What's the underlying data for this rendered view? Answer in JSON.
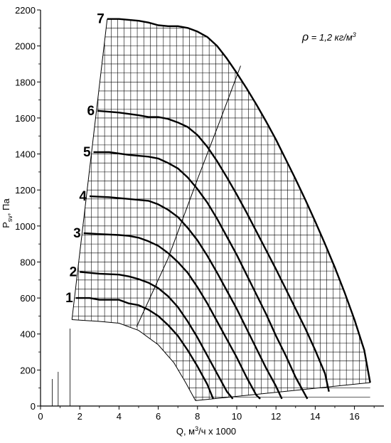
{
  "chart_data": {
    "type": "line",
    "xlabel_prefix": "Q, м",
    "xlabel_sup": "3",
    "xlabel_suffix": "/ч x 1000",
    "ylabel_main": "P",
    "ylabel_sub": "sv",
    "ylabel_suffix": ", Па",
    "density_symbol": "ρ",
    "density_text": " = 1,2 кг/м",
    "density_sup": "3",
    "xlim": [
      0,
      17.5
    ],
    "ylim": [
      0,
      2200
    ],
    "x_ticks": [
      0,
      2,
      4,
      6,
      8,
      10,
      12,
      14,
      16
    ],
    "y_ticks": [
      0,
      200,
      400,
      600,
      800,
      1000,
      1200,
      1400,
      1600,
      1800,
      2000,
      2200
    ],
    "series": [
      {
        "label": "1",
        "points": [
          [
            1.8,
            600
          ],
          [
            2.5,
            600
          ],
          [
            3.0,
            590
          ],
          [
            4.0,
            590
          ],
          [
            4.5,
            570
          ],
          [
            5.0,
            560
          ],
          [
            5.5,
            535
          ],
          [
            6.0,
            500
          ],
          [
            6.5,
            450
          ],
          [
            7.0,
            390
          ],
          [
            7.5,
            310
          ],
          [
            8.0,
            220
          ],
          [
            8.5,
            120
          ],
          [
            8.8,
            40
          ]
        ]
      },
      {
        "label": "2",
        "points": [
          [
            2.0,
            745
          ],
          [
            3.0,
            735
          ],
          [
            4.0,
            730
          ],
          [
            4.5,
            720
          ],
          [
            5.0,
            705
          ],
          [
            5.5,
            685
          ],
          [
            6.0,
            655
          ],
          [
            6.5,
            610
          ],
          [
            7.0,
            550
          ],
          [
            7.5,
            470
          ],
          [
            8.0,
            380
          ],
          [
            8.5,
            280
          ],
          [
            9.0,
            180
          ],
          [
            9.5,
            80
          ],
          [
            9.8,
            40
          ]
        ]
      },
      {
        "label": "3",
        "points": [
          [
            2.2,
            960
          ],
          [
            3.0,
            955
          ],
          [
            4.0,
            950
          ],
          [
            4.5,
            945
          ],
          [
            5.0,
            935
          ],
          [
            5.5,
            915
          ],
          [
            6.0,
            890
          ],
          [
            6.5,
            850
          ],
          [
            7.0,
            800
          ],
          [
            7.5,
            740
          ],
          [
            8.0,
            660
          ],
          [
            8.5,
            570
          ],
          [
            9.0,
            470
          ],
          [
            9.5,
            370
          ],
          [
            10.0,
            270
          ],
          [
            10.5,
            160
          ],
          [
            11.0,
            60
          ],
          [
            11.2,
            40
          ]
        ]
      },
      {
        "label": "4",
        "points": [
          [
            2.5,
            1165
          ],
          [
            3.5,
            1160
          ],
          [
            4.5,
            1150
          ],
          [
            5.5,
            1140
          ],
          [
            6.0,
            1120
          ],
          [
            6.5,
            1090
          ],
          [
            7.0,
            1050
          ],
          [
            7.5,
            990
          ],
          [
            8.0,
            920
          ],
          [
            8.5,
            835
          ],
          [
            9.0,
            740
          ],
          [
            9.5,
            640
          ],
          [
            10.0,
            540
          ],
          [
            10.5,
            430
          ],
          [
            11.0,
            320
          ],
          [
            11.5,
            210
          ],
          [
            12.0,
            110
          ],
          [
            12.3,
            40
          ]
        ]
      },
      {
        "label": "5",
        "points": [
          [
            2.7,
            1410
          ],
          [
            3.5,
            1410
          ],
          [
            4.5,
            1395
          ],
          [
            5.5,
            1385
          ],
          [
            6.0,
            1375
          ],
          [
            6.5,
            1350
          ],
          [
            7.0,
            1320
          ],
          [
            7.5,
            1270
          ],
          [
            8.0,
            1205
          ],
          [
            8.5,
            1130
          ],
          [
            9.0,
            1040
          ],
          [
            9.5,
            940
          ],
          [
            10.0,
            840
          ],
          [
            10.5,
            730
          ],
          [
            11.0,
            620
          ],
          [
            11.5,
            510
          ],
          [
            12.0,
            390
          ],
          [
            12.5,
            280
          ],
          [
            13.0,
            160
          ],
          [
            13.5,
            60
          ],
          [
            13.6,
            40
          ]
        ]
      },
      {
        "label": "6",
        "points": [
          [
            2.9,
            1640
          ],
          [
            4.0,
            1630
          ],
          [
            5.0,
            1615
          ],
          [
            5.5,
            1605
          ],
          [
            6.0,
            1605
          ],
          [
            6.5,
            1595
          ],
          [
            7.0,
            1575
          ],
          [
            7.5,
            1550
          ],
          [
            8.0,
            1505
          ],
          [
            8.5,
            1440
          ],
          [
            9.0,
            1360
          ],
          [
            9.5,
            1270
          ],
          [
            10.0,
            1175
          ],
          [
            10.5,
            1075
          ],
          [
            11.0,
            970
          ],
          [
            11.5,
            865
          ],
          [
            12.0,
            760
          ],
          [
            12.5,
            650
          ],
          [
            13.0,
            540
          ],
          [
            13.5,
            430
          ],
          [
            14.0,
            310
          ],
          [
            14.5,
            180
          ],
          [
            14.7,
            80
          ]
        ]
      },
      {
        "label": "7",
        "points": [
          [
            3.4,
            2150
          ],
          [
            4.0,
            2150
          ],
          [
            4.5,
            2145
          ],
          [
            5.0,
            2140
          ],
          [
            5.5,
            2130
          ],
          [
            6.0,
            2115
          ],
          [
            6.5,
            2110
          ],
          [
            7.0,
            2110
          ],
          [
            7.5,
            2100
          ],
          [
            8.0,
            2080
          ],
          [
            8.5,
            2050
          ],
          [
            9.0,
            2000
          ],
          [
            9.5,
            1930
          ],
          [
            10.0,
            1850
          ],
          [
            10.5,
            1765
          ],
          [
            11.0,
            1675
          ],
          [
            11.5,
            1580
          ],
          [
            12.0,
            1480
          ],
          [
            12.5,
            1370
          ],
          [
            13.0,
            1260
          ],
          [
            13.5,
            1145
          ],
          [
            14.0,
            1025
          ],
          [
            14.5,
            900
          ],
          [
            15.0,
            770
          ],
          [
            15.5,
            630
          ],
          [
            16.0,
            480
          ],
          [
            16.5,
            310
          ],
          [
            16.8,
            130
          ]
        ]
      }
    ],
    "envelope_left": [
      [
        1.6,
        480
      ],
      [
        3.4,
        2150
      ]
    ],
    "envelope_bottom": [
      [
        7.9,
        30
      ],
      [
        16.8,
        130
      ]
    ],
    "efficiency_line": [
      [
        4.9,
        440
      ],
      [
        6.5,
        820
      ],
      [
        8.0,
        1260
      ],
      [
        9.2,
        1600
      ],
      [
        10.2,
        1890
      ]
    ],
    "min_pressure_curve": [
      [
        1.6,
        480
      ],
      [
        3.0,
        470
      ],
      [
        4.0,
        460
      ],
      [
        5.0,
        420
      ],
      [
        6.0,
        340
      ],
      [
        6.8,
        240
      ],
      [
        7.4,
        130
      ],
      [
        7.9,
        30
      ]
    ],
    "grid_vlines_data_x_min": 1.6,
    "grid_vlines_step": 0.333,
    "grid_hlines_step": 50,
    "left_stubs": [
      [
        0.6,
        150
      ],
      [
        0.9,
        190
      ],
      [
        1.5,
        430
      ]
    ]
  }
}
